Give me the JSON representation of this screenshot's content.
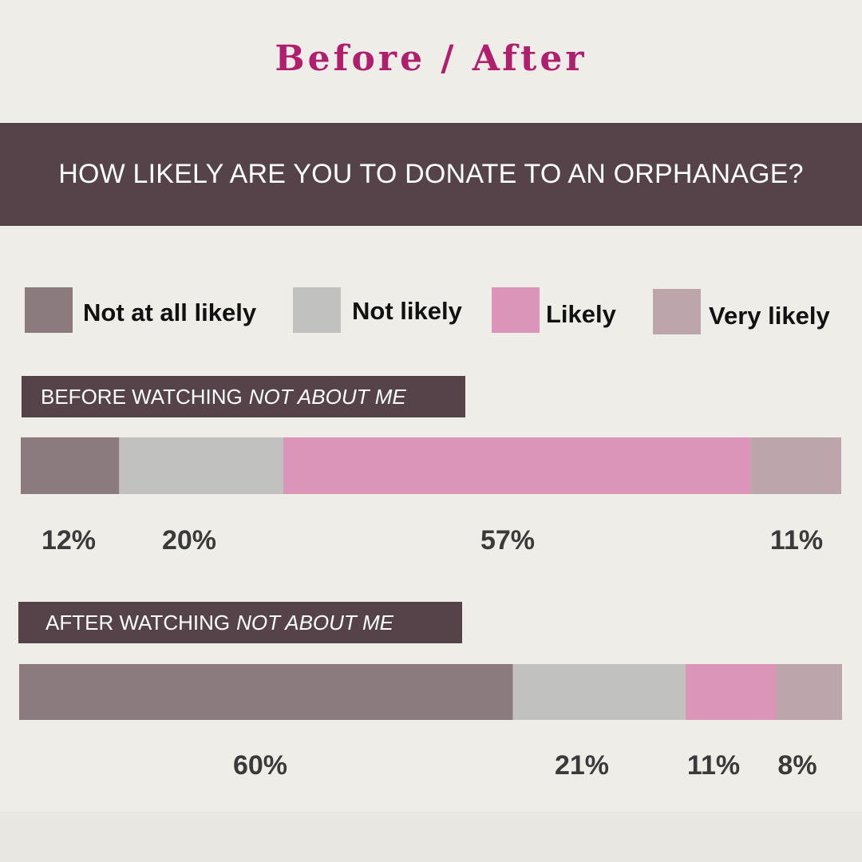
{
  "title": "Before / After",
  "question": "HOW LIKELY ARE YOU TO DONATE TO AN ORPHANAGE?",
  "colors": {
    "title": "#b01e6d",
    "banner": "#564349",
    "not_at_all_likely": "#8b7b7e",
    "not_likely": "#c1c1bf",
    "likely": "#da95b9",
    "very_likely": "#bca5ab"
  },
  "legend": [
    {
      "label": "Not at all likely",
      "color": "#8b7b7e"
    },
    {
      "label": "Not likely",
      "color": "#c1c1bf"
    },
    {
      "label": "Likely",
      "color": "#da95b9"
    },
    {
      "label": "Very likely",
      "color": "#bca5ab"
    }
  ],
  "sections": [
    {
      "label_prefix": "BEFORE WATCHING",
      "label_title": "NOT ABOUT ME"
    },
    {
      "label_prefix": "AFTER WATCHING",
      "label_title": "NOT ABOUT ME"
    }
  ],
  "chart_data": {
    "type": "bar",
    "orientation": "horizontal",
    "stacked": true,
    "title": "HOW LIKELY ARE YOU TO DONATE TO AN ORPHANAGE?",
    "categories": [
      "BEFORE WATCHING NOT ABOUT ME",
      "AFTER WATCHING NOT ABOUT ME"
    ],
    "series": [
      {
        "name": "Not at all likely",
        "values": [
          12,
          60
        ],
        "labels": [
          "12%",
          "60%"
        ]
      },
      {
        "name": "Not likely",
        "values": [
          20,
          21
        ],
        "labels": [
          "20%",
          "21%"
        ]
      },
      {
        "name": "Likely",
        "values": [
          57,
          11
        ],
        "labels": [
          "57%",
          "11%"
        ]
      },
      {
        "name": "Very likely",
        "values": [
          11,
          8
        ],
        "labels": [
          "11%",
          "8%"
        ]
      }
    ],
    "legend_position": "top",
    "unit": "%"
  }
}
